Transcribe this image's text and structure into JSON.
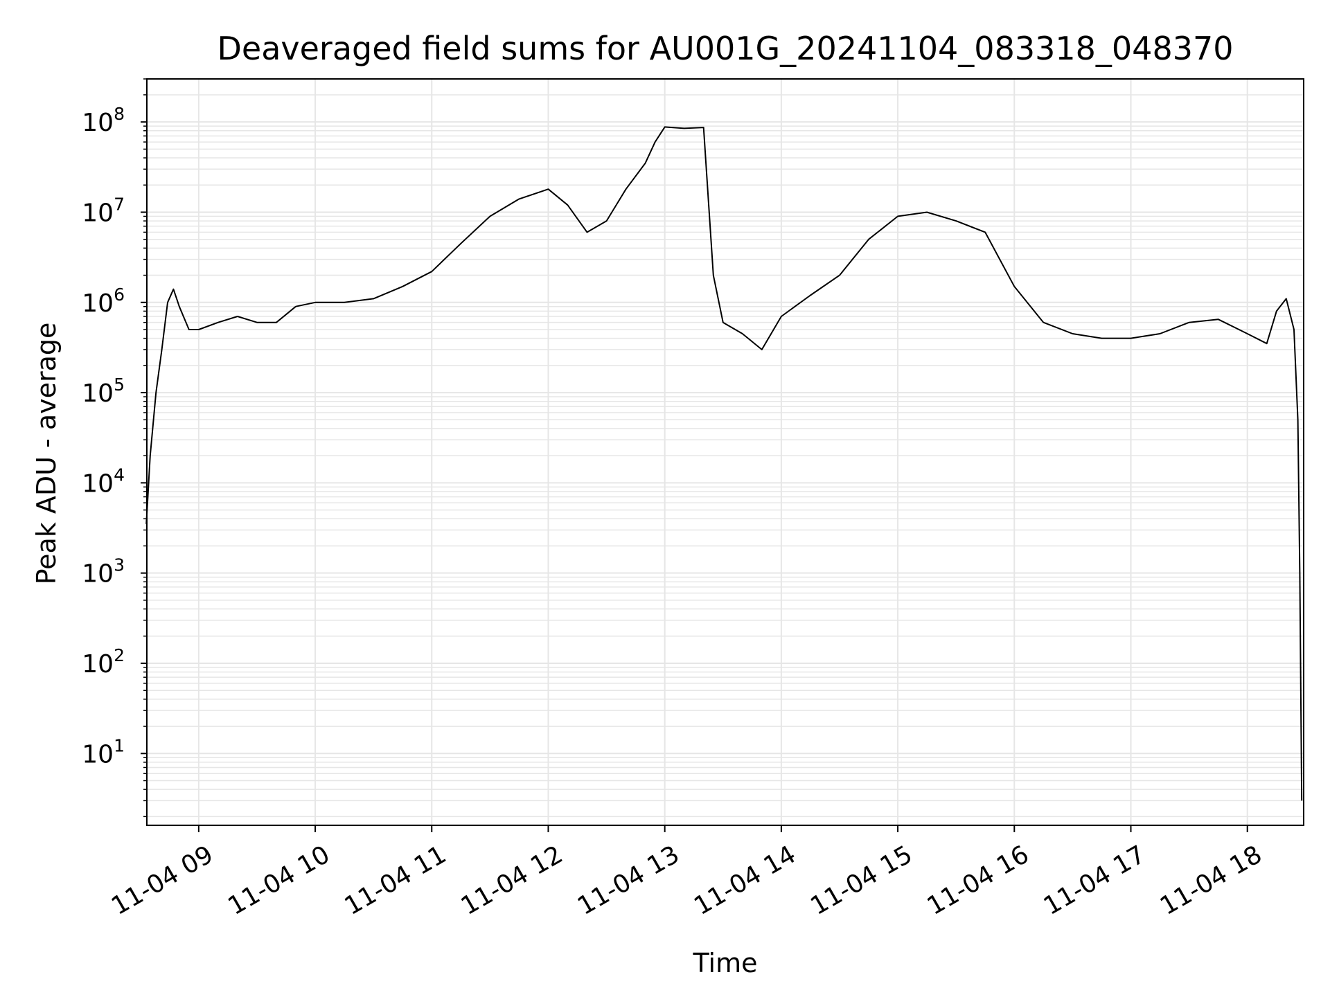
{
  "chart_data": {
    "type": "line",
    "title": "Deaveraged field sums for AU001G_20241104_083318_048370",
    "xlabel": "Time",
    "ylabel": "Peak ADU - average",
    "yscale": "log",
    "ylim": [
      1.6,
      300000000
    ],
    "xlim": [
      "2024-11-04 08:33:18",
      "2024-11-04 18:29"
    ],
    "grid": {
      "major": true,
      "minor_y": true
    },
    "x_ticks": [
      "11-04 09",
      "11-04 10",
      "11-04 11",
      "11-04 12",
      "11-04 13",
      "11-04 14",
      "11-04 15",
      "11-04 16",
      "11-04 17",
      "11-04 18"
    ],
    "y_ticks": [
      {
        "base": "10",
        "exp": "1",
        "value": 10
      },
      {
        "base": "10",
        "exp": "2",
        "value": 100
      },
      {
        "base": "10",
        "exp": "3",
        "value": 1000
      },
      {
        "base": "10",
        "exp": "4",
        "value": 10000
      },
      {
        "base": "10",
        "exp": "5",
        "value": 100000
      },
      {
        "base": "10",
        "exp": "6",
        "value": 1000000
      },
      {
        "base": "10",
        "exp": "7",
        "value": 10000000
      },
      {
        "base": "10",
        "exp": "8",
        "value": 100000000
      }
    ],
    "line_color": "#000000",
    "grid_color": "#e6e6e6",
    "series": [
      {
        "x": [
          "2024-11-04 08:33",
          "2024-11-04 08:35",
          "2024-11-04 08:38",
          "2024-11-04 08:41",
          "2024-11-04 08:44",
          "2024-11-04 08:47",
          "2024-11-04 08:50",
          "2024-11-04 08:55",
          "2024-11-04 09:00",
          "2024-11-04 09:10",
          "2024-11-04 09:20",
          "2024-11-04 09:30",
          "2024-11-04 09:40",
          "2024-11-04 09:50",
          "2024-11-04 10:00",
          "2024-11-04 10:15",
          "2024-11-04 10:30",
          "2024-11-04 10:45",
          "2024-11-04 11:00",
          "2024-11-04 11:15",
          "2024-11-04 11:30",
          "2024-11-04 11:45",
          "2024-11-04 12:00",
          "2024-11-04 12:10",
          "2024-11-04 12:20",
          "2024-11-04 12:30",
          "2024-11-04 12:40",
          "2024-11-04 12:50",
          "2024-11-04 12:55",
          "2024-11-04 13:00",
          "2024-11-04 13:10",
          "2024-11-04 13:20",
          "2024-11-04 13:25",
          "2024-11-04 13:30",
          "2024-11-04 13:40",
          "2024-11-04 13:50",
          "2024-11-04 14:00",
          "2024-11-04 14:15",
          "2024-11-04 14:30",
          "2024-11-04 14:45",
          "2024-11-04 15:00",
          "2024-11-04 15:15",
          "2024-11-04 15:30",
          "2024-11-04 15:45",
          "2024-11-04 16:00",
          "2024-11-04 16:15",
          "2024-11-04 16:30",
          "2024-11-04 16:45",
          "2024-11-04 17:00",
          "2024-11-04 17:15",
          "2024-11-04 17:30",
          "2024-11-04 17:45",
          "2024-11-04 18:00",
          "2024-11-04 18:10",
          "2024-11-04 18:15",
          "2024-11-04 18:20",
          "2024-11-04 18:24",
          "2024-11-04 18:26",
          "2024-11-04 18:27",
          "2024-11-04 18:28"
        ],
        "y": [
          3500,
          20000,
          100000,
          300000,
          1000000,
          1400000,
          900000,
          500000,
          500000,
          600000,
          700000,
          600000,
          600000,
          900000,
          1000000,
          1000000,
          1100000,
          1500000,
          2200000,
          4500000,
          9000000,
          14000000,
          18000000,
          12000000,
          6000000,
          8000000,
          18000000,
          35000000,
          60000000,
          88000000,
          85000000,
          87000000,
          2000000,
          600000,
          450000,
          300000,
          700000,
          1200000,
          2000000,
          5000000,
          9000000,
          10000000,
          8000000,
          6000000,
          1500000,
          600000,
          450000,
          400000,
          400000,
          450000,
          600000,
          650000,
          450000,
          350000,
          800000,
          1100000,
          500000,
          50000,
          1000,
          3
        ]
      }
    ]
  }
}
